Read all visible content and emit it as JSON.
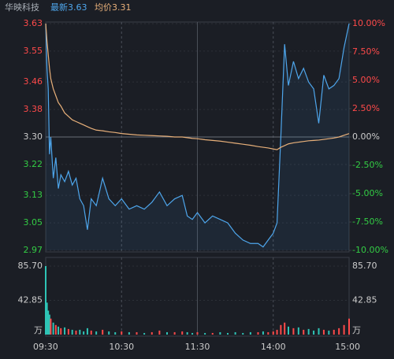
{
  "chart_data": [
    {
      "type": "line",
      "title": "华映科技",
      "x": [
        0,
        1,
        2,
        3,
        4,
        6,
        8,
        10,
        12,
        15,
        18,
        21,
        24,
        27,
        30,
        33,
        36,
        40,
        45,
        50,
        55,
        60,
        66,
        72,
        78,
        84,
        90,
        96,
        102,
        108,
        112,
        116,
        120,
        126,
        132,
        138,
        144,
        150,
        156,
        162,
        168,
        172,
        176,
        180,
        183,
        186,
        189,
        192,
        196,
        200,
        204,
        208,
        212,
        216,
        220,
        224,
        228,
        232,
        236,
        240
      ],
      "series": [
        {
          "name": "最新3.63",
          "color": "#4ea6ec",
          "values": [
            3.63,
            3.5,
            3.44,
            3.25,
            3.3,
            3.18,
            3.24,
            3.15,
            3.19,
            3.17,
            3.2,
            3.16,
            3.18,
            3.12,
            3.1,
            3.03,
            3.12,
            3.1,
            3.18,
            3.12,
            3.1,
            3.12,
            3.09,
            3.1,
            3.09,
            3.11,
            3.14,
            3.1,
            3.12,
            3.13,
            3.07,
            3.06,
            3.08,
            3.05,
            3.07,
            3.06,
            3.05,
            3.02,
            3.0,
            2.99,
            2.99,
            2.98,
            3.0,
            3.02,
            3.05,
            3.3,
            3.57,
            3.45,
            3.52,
            3.47,
            3.5,
            3.46,
            3.44,
            3.34,
            3.48,
            3.44,
            3.45,
            3.47,
            3.56,
            3.63
          ]
        },
        {
          "name": "均价3.31",
          "color": "#e8b07a",
          "values": [
            3.63,
            3.58,
            3.54,
            3.5,
            3.47,
            3.44,
            3.42,
            3.4,
            3.39,
            3.37,
            3.36,
            3.35,
            3.345,
            3.34,
            3.335,
            3.33,
            3.325,
            3.32,
            3.318,
            3.315,
            3.313,
            3.31,
            3.308,
            3.306,
            3.305,
            3.304,
            3.303,
            3.302,
            3.3,
            3.3,
            3.298,
            3.296,
            3.295,
            3.292,
            3.29,
            3.288,
            3.285,
            3.282,
            3.279,
            3.276,
            3.272,
            3.27,
            3.268,
            3.265,
            3.263,
            3.27,
            3.275,
            3.28,
            3.283,
            3.285,
            3.287,
            3.289,
            3.29,
            3.291,
            3.293,
            3.295,
            3.297,
            3.3,
            3.305,
            3.31
          ]
        }
      ],
      "xlim": [
        0,
        240
      ],
      "xticks": [
        60,
        120,
        180
      ],
      "ylim": [
        2.97,
        3.63
      ],
      "yticks": [
        3.63,
        3.55,
        3.46,
        3.38,
        {
          "value": 3.3,
          "label": "3.30"
        },
        3.22,
        3.13,
        3.05,
        2.97
      ],
      "y2lim": [
        -10,
        10
      ],
      "y2ticks": [
        {
          "value": 10,
          "label": "10.00%"
        },
        {
          "value": 7.5,
          "label": "7.50%"
        },
        {
          "value": 5,
          "label": "5.00%"
        },
        {
          "value": 2.5,
          "label": "2.50%"
        },
        {
          "value": 0,
          "label": "0.00%"
        },
        {
          "value": -2.5,
          "label": "-2.50%"
        },
        {
          "value": -5,
          "label": "-5.00%"
        },
        {
          "value": -7.5,
          "label": "-7.50%"
        },
        {
          "value": -10,
          "label": "-10.00%"
        }
      ],
      "baseline": 3.3,
      "up_color": "#ff4a4a",
      "down_color": "#33cc44",
      "flat_color": "#cccccc",
      "grid": true
    },
    {
      "type": "bar",
      "ylabel": "万",
      "x": [
        0,
        1,
        2,
        3,
        4,
        6,
        8,
        10,
        12,
        15,
        18,
        21,
        24,
        27,
        30,
        33,
        36,
        40,
        45,
        50,
        55,
        60,
        66,
        72,
        78,
        84,
        90,
        96,
        102,
        108,
        112,
        116,
        120,
        126,
        132,
        138,
        144,
        150,
        156,
        162,
        168,
        172,
        176,
        180,
        183,
        186,
        189,
        192,
        196,
        200,
        204,
        208,
        212,
        216,
        220,
        224,
        228,
        232,
        236,
        240
      ],
      "values": [
        85.7,
        40,
        30,
        25,
        20,
        15,
        12,
        10,
        8,
        9,
        7,
        6,
        5,
        6,
        4,
        8,
        5,
        4,
        6,
        4,
        3,
        4,
        3,
        3,
        2,
        3,
        5,
        3,
        3,
        4,
        3,
        2,
        3,
        2,
        2,
        3,
        2,
        3,
        2,
        3,
        3,
        4,
        3,
        4,
        6,
        12,
        15,
        10,
        8,
        9,
        6,
        7,
        5,
        8,
        6,
        5,
        6,
        8,
        12,
        20
      ],
      "xlim": [
        0,
        240
      ],
      "xticks": [
        {
          "value": 0,
          "label": "09:30"
        },
        {
          "value": 60,
          "label": "10:30"
        },
        {
          "value": 120,
          "label": "11:30"
        },
        {
          "value": 180,
          "label": "14:00"
        },
        {
          "value": 240,
          "label": "15:00"
        }
      ],
      "ylim": [
        0,
        85.7
      ],
      "yticks": [
        {
          "value": 85.7,
          "label": "85.70"
        },
        42.85
      ],
      "up_color": "#ff4a4a",
      "down_color": "#2ec4b6"
    }
  ]
}
